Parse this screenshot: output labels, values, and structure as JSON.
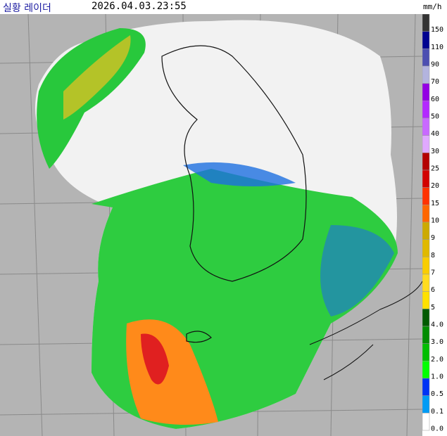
{
  "header": {
    "title": "실황 레이더",
    "time": "2026.04.03.23:55",
    "unit": "mm/h"
  },
  "legend": [
    {
      "label": "150",
      "color": "#333333"
    },
    {
      "label": "110",
      "color": "#000390"
    },
    {
      "label": "90",
      "color": "#4c4eb1"
    },
    {
      "label": "70",
      "color": "#b3b4de"
    },
    {
      "label": "60",
      "color": "#9300e4"
    },
    {
      "label": "50",
      "color": "#b329ff"
    },
    {
      "label": "40",
      "color": "#c969ff"
    },
    {
      "label": "30",
      "color": "#e0a9ff"
    },
    {
      "label": "25",
      "color": "#b40000"
    },
    {
      "label": "20",
      "color": "#d20000"
    },
    {
      "label": "15",
      "color": "#ff3200"
    },
    {
      "label": "10",
      "color": "#ff6600"
    },
    {
      "label": "9",
      "color": "#ccaa00"
    },
    {
      "label": "8",
      "color": "#e0b900"
    },
    {
      "label": "7",
      "color": "#f9cd00"
    },
    {
      "label": "6",
      "color": "#ffdc1f"
    },
    {
      "label": "5",
      "color": "#ffe100"
    },
    {
      "label": "4.0",
      "color": "#005a00"
    },
    {
      "label": "3.0",
      "color": "#008c00"
    },
    {
      "label": "2.0",
      "color": "#00be00"
    },
    {
      "label": "1.0",
      "color": "#00ff00"
    },
    {
      "label": "0.5",
      "color": "#0033f5"
    },
    {
      "label": "0.1",
      "color": "#009bf5"
    },
    {
      "label": "0.0",
      "color": "#ffffff"
    }
  ]
}
